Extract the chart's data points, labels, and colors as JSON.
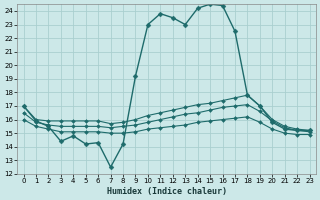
{
  "xlabel": "Humidex (Indice chaleur)",
  "ylabel": "",
  "xlim": [
    -0.5,
    23.5
  ],
  "ylim": [
    12,
    24.5
  ],
  "yticks": [
    12,
    13,
    14,
    15,
    16,
    17,
    18,
    19,
    20,
    21,
    22,
    23,
    24
  ],
  "xticks": [
    0,
    1,
    2,
    3,
    4,
    5,
    6,
    7,
    8,
    9,
    10,
    11,
    12,
    13,
    14,
    15,
    16,
    17,
    18,
    19,
    20,
    21,
    22,
    23
  ],
  "bg_color": "#cce8e8",
  "grid_color": "#aacfcf",
  "line_color": "#1e6b6b",
  "curves": [
    {
      "x": [
        0,
        1,
        2,
        3,
        4,
        5,
        6,
        7,
        8,
        9,
        10,
        11,
        12,
        13,
        14,
        15,
        16,
        17,
        18,
        19,
        20,
        21,
        22,
        23
      ],
      "y": [
        17.0,
        15.9,
        15.5,
        14.4,
        14.8,
        14.2,
        14.3,
        12.5,
        14.2,
        19.2,
        23.0,
        23.8,
        23.5,
        23.0,
        24.2,
        24.5,
        24.4,
        22.5,
        17.8,
        17.0,
        15.8,
        15.3,
        15.2,
        15.2
      ],
      "marker": "D",
      "markersize": 2.5,
      "linewidth": 1.0
    },
    {
      "x": [
        0,
        1,
        2,
        3,
        4,
        5,
        6,
        7,
        8,
        9,
        10,
        11,
        12,
        13,
        14,
        15,
        16,
        17,
        18,
        19,
        20,
        21,
        22,
        23
      ],
      "y": [
        17.0,
        16.0,
        15.9,
        15.9,
        15.9,
        15.9,
        15.9,
        15.7,
        15.8,
        16.0,
        16.3,
        16.5,
        16.7,
        16.9,
        17.1,
        17.2,
        17.4,
        17.6,
        17.8,
        17.0,
        16.0,
        15.5,
        15.3,
        15.2
      ],
      "marker": "D",
      "markersize": 2,
      "linewidth": 0.8
    },
    {
      "x": [
        0,
        1,
        2,
        3,
        4,
        5,
        6,
        7,
        8,
        9,
        10,
        11,
        12,
        13,
        14,
        15,
        16,
        17,
        18,
        19,
        20,
        21,
        22,
        23
      ],
      "y": [
        16.5,
        15.8,
        15.6,
        15.5,
        15.5,
        15.5,
        15.5,
        15.4,
        15.5,
        15.6,
        15.8,
        16.0,
        16.2,
        16.4,
        16.5,
        16.7,
        16.9,
        17.0,
        17.1,
        16.6,
        15.9,
        15.4,
        15.2,
        15.1
      ],
      "marker": "D",
      "markersize": 2,
      "linewidth": 0.8
    },
    {
      "x": [
        0,
        1,
        2,
        3,
        4,
        5,
        6,
        7,
        8,
        9,
        10,
        11,
        12,
        13,
        14,
        15,
        16,
        17,
        18,
        19,
        20,
        21,
        22,
        23
      ],
      "y": [
        16.0,
        15.5,
        15.3,
        15.1,
        15.1,
        15.1,
        15.1,
        15.0,
        15.0,
        15.1,
        15.3,
        15.4,
        15.5,
        15.6,
        15.8,
        15.9,
        16.0,
        16.1,
        16.2,
        15.8,
        15.3,
        15.0,
        14.9,
        14.9
      ],
      "marker": "D",
      "markersize": 2,
      "linewidth": 0.8
    }
  ]
}
